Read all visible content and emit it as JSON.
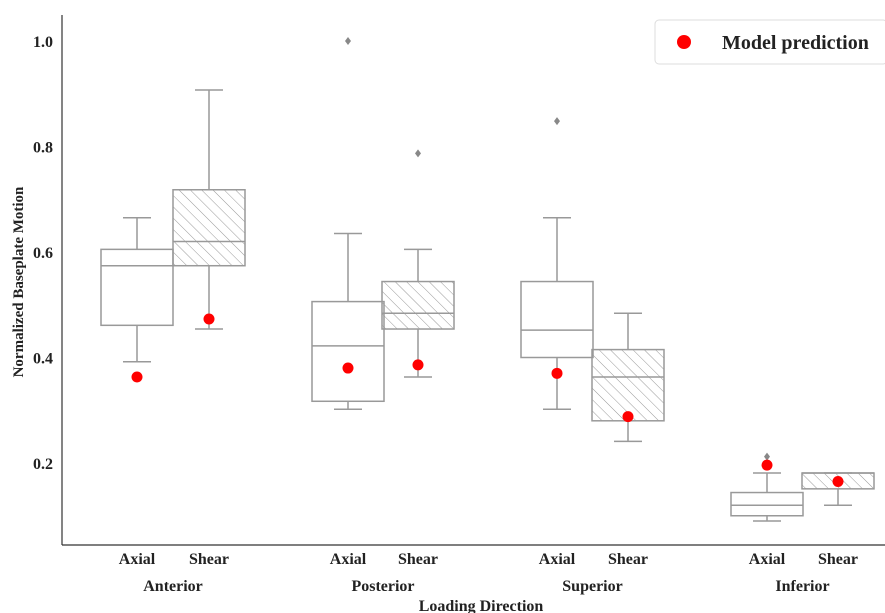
{
  "chart_data": {
    "type": "box",
    "title": "",
    "xlabel": "Loading Direction",
    "ylabel": "Normalized Baseplate Motion",
    "ylim": [
      0.04,
      1.05
    ],
    "yticks": [
      "0.2",
      "0.4",
      "0.6",
      "0.8",
      "1.0"
    ],
    "grid": false,
    "legend": {
      "position": "top-right",
      "entries": [
        "Model prediction"
      ]
    },
    "groups": [
      "Anterior",
      "Posterior",
      "Superior",
      "Inferior"
    ],
    "subcategories": [
      "Axial",
      "Shear"
    ],
    "boxes": [
      {
        "group": "Anterior",
        "sub": "Axial",
        "whisker_low": 0.392,
        "q1": 0.461,
        "median": 0.574,
        "q3": 0.605,
        "whisker_high": 0.665,
        "outliers": []
      },
      {
        "group": "Anterior",
        "sub": "Shear",
        "whisker_low": 0.454,
        "q1": 0.574,
        "median": 0.62,
        "q3": 0.718,
        "whisker_high": 0.907,
        "outliers": []
      },
      {
        "group": "Posterior",
        "sub": "Axial",
        "whisker_low": 0.302,
        "q1": 0.317,
        "median": 0.422,
        "q3": 0.506,
        "whisker_high": 0.635,
        "outliers": [
          1.0
        ]
      },
      {
        "group": "Posterior",
        "sub": "Shear",
        "whisker_low": 0.363,
        "q1": 0.454,
        "median": 0.484,
        "q3": 0.544,
        "whisker_high": 0.605,
        "outliers": [
          0.787
        ]
      },
      {
        "group": "Superior",
        "sub": "Axial",
        "whisker_low": 0.302,
        "q1": 0.4,
        "median": 0.452,
        "q3": 0.544,
        "whisker_high": 0.665,
        "outliers": [
          0.848
        ]
      },
      {
        "group": "Superior",
        "sub": "Shear",
        "whisker_low": 0.241,
        "q1": 0.28,
        "median": 0.363,
        "q3": 0.415,
        "whisker_high": 0.484,
        "outliers": []
      },
      {
        "group": "Inferior",
        "sub": "Axial",
        "whisker_low": 0.09,
        "q1": 0.1,
        "median": 0.12,
        "q3": 0.144,
        "whisker_high": 0.181,
        "outliers": [
          0.212
        ]
      },
      {
        "group": "Inferior",
        "sub": "Shear",
        "whisker_low": 0.12,
        "q1": 0.151,
        "median": 0.181,
        "q3": 0.181,
        "whisker_high": 0.181,
        "outliers": []
      }
    ],
    "model_prediction": [
      {
        "group": "Anterior",
        "sub": "Axial",
        "value": 0.363
      },
      {
        "group": "Anterior",
        "sub": "Shear",
        "value": 0.473
      },
      {
        "group": "Posterior",
        "sub": "Axial",
        "value": 0.38
      },
      {
        "group": "Posterior",
        "sub": "Shear",
        "value": 0.386
      },
      {
        "group": "Superior",
        "sub": "Axial",
        "value": 0.37
      },
      {
        "group": "Superior",
        "sub": "Shear",
        "value": 0.288
      },
      {
        "group": "Inferior",
        "sub": "Axial",
        "value": 0.196
      },
      {
        "group": "Inferior",
        "sub": "Shear",
        "value": 0.165
      }
    ],
    "colors": {
      "box_edge": "#999999",
      "prediction": "#ff0000",
      "axis": "#333333",
      "outlier": "#888888"
    }
  }
}
